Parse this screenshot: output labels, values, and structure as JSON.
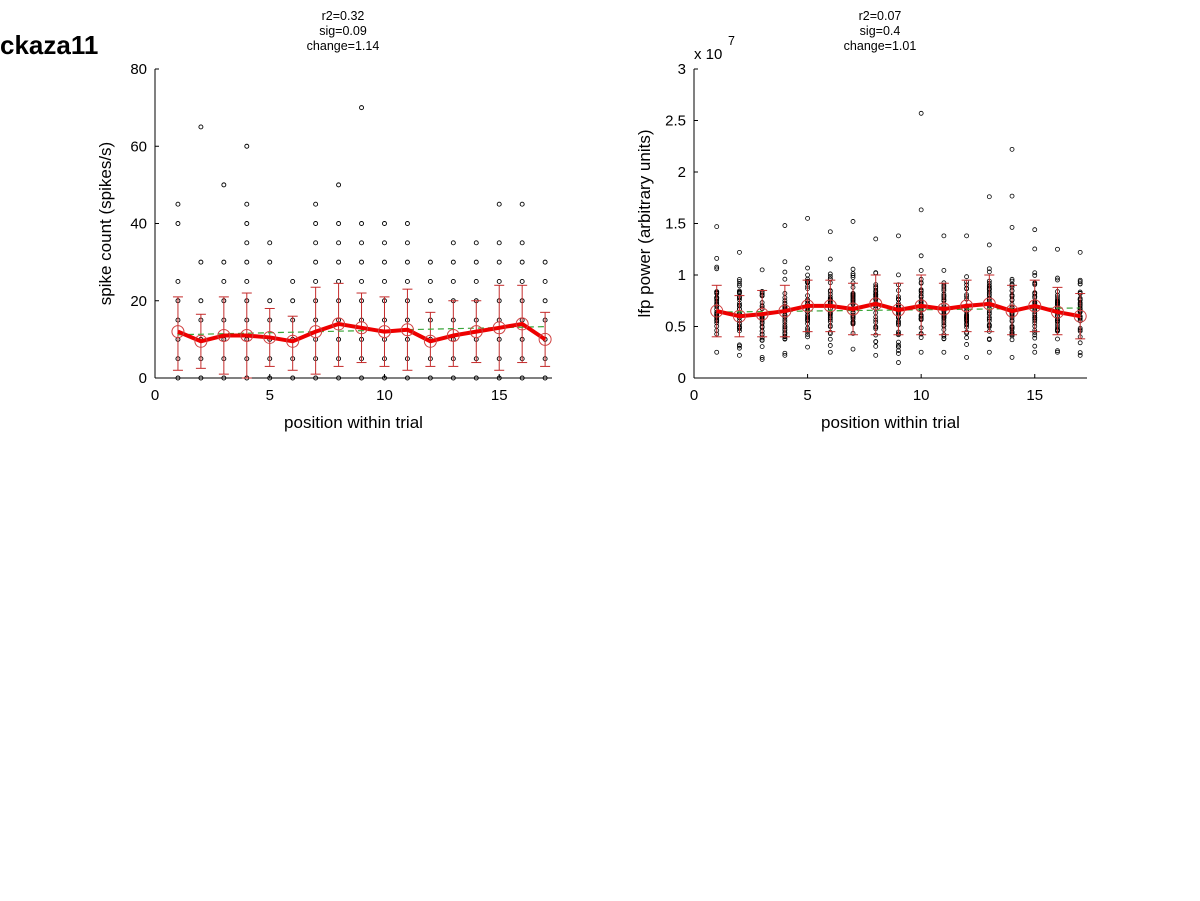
{
  "figure_title": "ckaza11",
  "chart_data": [
    {
      "type": "scatter",
      "stats": [
        "r2=0.32",
        "sig=0.09",
        "change=1.14"
      ],
      "xlabel": "position within trial",
      "ylabel": "spike count (spikes/s)",
      "xlim": [
        0,
        17.3
      ],
      "ylim": [
        0,
        80
      ],
      "xticks": [
        0,
        5,
        10,
        15
      ],
      "yticks": [
        0,
        20,
        40,
        60,
        80
      ],
      "tick_labels_x": [
        "0",
        "5",
        "10",
        "15"
      ],
      "tick_labels_y": [
        "0",
        "20",
        "40",
        "60",
        "80"
      ],
      "exponent_label": "",
      "grid": false,
      "x": [
        1,
        2,
        3,
        4,
        5,
        6,
        7,
        8,
        9,
        10,
        11,
        12,
        13,
        14,
        15,
        16,
        17
      ],
      "mean": [
        12,
        9.5,
        11,
        11,
        10.5,
        9.5,
        12,
        14,
        13,
        12,
        12.5,
        9.5,
        11,
        12,
        13,
        14,
        10
      ],
      "error_low": [
        2,
        2.5,
        1,
        0,
        3,
        2,
        1,
        3,
        4,
        3,
        2,
        3,
        3,
        4,
        2,
        4,
        3
      ],
      "error_high": [
        21,
        16.5,
        21,
        22,
        18,
        16,
        23.5,
        24.5,
        22,
        21,
        23,
        17,
        20,
        20,
        24,
        24,
        17
      ],
      "fit_line": [
        11.2,
        13.3
      ],
      "points": [
        [
          0,
          5,
          10,
          15,
          20,
          25,
          40,
          45
        ],
        [
          0,
          5,
          10,
          15,
          20,
          30,
          65
        ],
        [
          0,
          5,
          10,
          15,
          20,
          25,
          30,
          50
        ],
        [
          0,
          5,
          10,
          15,
          20,
          25,
          30,
          35,
          40,
          45,
          60
        ],
        [
          0,
          5,
          10,
          15,
          20,
          30,
          35
        ],
        [
          0,
          5,
          10,
          15,
          20,
          25
        ],
        [
          0,
          5,
          10,
          15,
          20,
          25,
          30,
          35,
          40,
          45
        ],
        [
          0,
          5,
          10,
          15,
          20,
          25,
          30,
          35,
          40,
          50
        ],
        [
          0,
          5,
          10,
          15,
          20,
          25,
          30,
          35,
          40,
          70
        ],
        [
          0,
          5,
          10,
          15,
          20,
          25,
          30,
          35,
          40
        ],
        [
          0,
          5,
          10,
          15,
          20,
          25,
          30,
          35,
          40
        ],
        [
          0,
          5,
          10,
          15,
          20,
          25,
          30
        ],
        [
          0,
          5,
          10,
          15,
          20,
          25,
          30,
          35
        ],
        [
          0,
          5,
          10,
          15,
          20,
          25,
          30,
          35
        ],
        [
          0,
          5,
          10,
          15,
          20,
          25,
          30,
          35,
          45
        ],
        [
          0,
          5,
          10,
          15,
          20,
          25,
          30,
          35,
          45
        ],
        [
          0,
          5,
          10,
          15,
          20,
          25,
          30
        ]
      ]
    },
    {
      "type": "scatter",
      "stats": [
        "r2=0.07",
        "sig=0.4",
        "change=1.01"
      ],
      "xlabel": "position within trial",
      "ylabel": "lfp power (arbitrary units)",
      "xlim": [
        0,
        17.3
      ],
      "ylim": [
        0,
        3
      ],
      "xticks": [
        0,
        5,
        10,
        15
      ],
      "yticks": [
        0,
        0.5,
        1,
        1.5,
        2,
        2.5,
        3
      ],
      "tick_labels_x": [
        "0",
        "5",
        "10",
        "15"
      ],
      "tick_labels_y": [
        "0",
        "0.5",
        "1",
        "1.5",
        "2",
        "2.5",
        "3"
      ],
      "exponent_label": "x 10",
      "exponent_power": "7",
      "grid": false,
      "x": [
        1,
        2,
        3,
        4,
        5,
        6,
        7,
        8,
        9,
        10,
        11,
        12,
        13,
        14,
        15,
        16,
        17
      ],
      "mean": [
        0.65,
        0.6,
        0.62,
        0.65,
        0.7,
        0.7,
        0.67,
        0.72,
        0.66,
        0.7,
        0.67,
        0.7,
        0.72,
        0.65,
        0.7,
        0.64,
        0.6
      ],
      "error_low": [
        0.4,
        0.4,
        0.4,
        0.4,
        0.45,
        0.45,
        0.42,
        0.42,
        0.42,
        0.42,
        0.42,
        0.45,
        0.45,
        0.42,
        0.45,
        0.42,
        0.38
      ],
      "error_high": [
        0.9,
        0.8,
        0.85,
        0.9,
        0.95,
        0.95,
        0.92,
        1.0,
        0.92,
        1.0,
        0.92,
        0.95,
        1.0,
        0.9,
        0.95,
        0.88,
        0.82
      ],
      "fit_line": [
        0.64,
        0.68
      ],
      "point_ranges": [
        [
          0.25,
          1.47
        ],
        [
          0.22,
          1.22
        ],
        [
          0.18,
          1.05
        ],
        [
          0.22,
          1.48
        ],
        [
          0.3,
          1.55
        ],
        [
          0.25,
          1.42
        ],
        [
          0.28,
          1.52
        ],
        [
          0.22,
          1.35
        ],
        [
          0.15,
          1.38
        ],
        [
          0.25,
          2.57
        ],
        [
          0.25,
          1.38
        ],
        [
          0.2,
          1.38
        ],
        [
          0.25,
          1.76
        ],
        [
          0.2,
          2.22
        ],
        [
          0.25,
          1.44
        ],
        [
          0.25,
          1.25
        ],
        [
          0.22,
          1.22
        ]
      ]
    }
  ]
}
